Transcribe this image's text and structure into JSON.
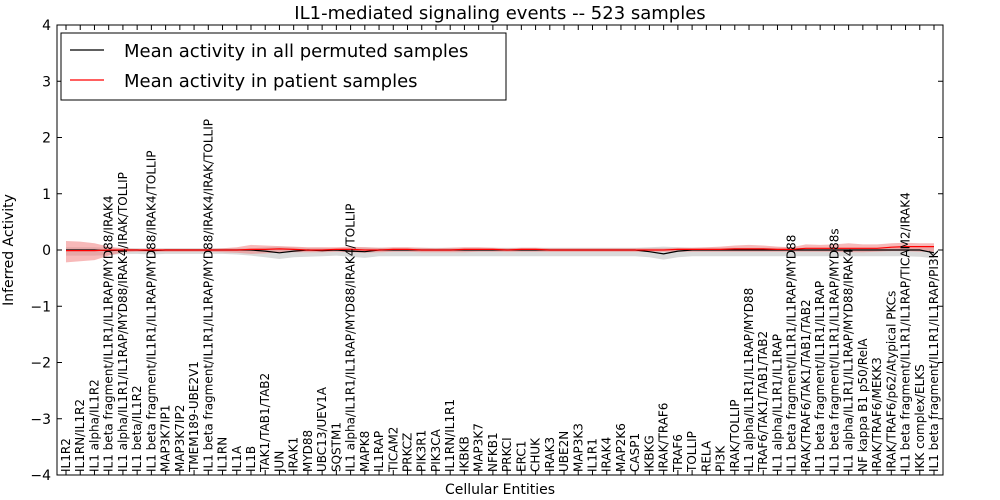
{
  "chart_data": {
    "type": "line",
    "title": "IL1-mediated signaling events -- 523 samples",
    "xlabel": "Cellular Entities",
    "ylabel": "Inferred Activity",
    "ylim": [
      -4,
      4
    ],
    "yticks": [
      4,
      3,
      2,
      1,
      0,
      -1,
      -2,
      -3,
      -4
    ],
    "ytick_labels": [
      "4",
      "3",
      "2",
      "1",
      "0",
      "−1",
      "−2",
      "−3",
      "−4"
    ],
    "legend_position": "top-left",
    "categories": [
      "IL1R2",
      "IL1RN/IL1R2",
      "IL1 alpha/IL1R2",
      "IL1 beta fragment/IL1R1/IL1RAP/MYD88/IRAK4",
      "IL1 alpha/IL1R1/IL1RAP/MYD88/IRAK4/IRAK/TOLLIP",
      "IL1 beta/IL1R2",
      "IL1 beta fragment/IL1R1/IL1RAP/MYD88/IRAK4/TOLLIP",
      "MAP3K7IP1",
      "MAP3K7IP2",
      "TMEM189-UBE2V1",
      "IL1 beta fragment/IL1R1/IL1RAP/MYD88/IRAK4/IRAK/TOLLIP",
      "IL1RN",
      "IL1A",
      "IL1B",
      "TAK1/TAB1/TAB2",
      "JUN",
      "IRAK1",
      "MYD88",
      "UBC13/UEV1A",
      "SQSTM1",
      "IL1 alpha/IL1R1/IL1RAP/MYD88/IRAK4/TOLLIP",
      "MAPK8",
      "IL1RAP",
      "TICAM2",
      "PRKCZ",
      "PIK3R1",
      "PIK3CA",
      "IL1RN/IL1R1",
      "IKBKB",
      "MAP3K7",
      "NFKB1",
      "PRKCI",
      "ERC1",
      "CHUK",
      "IRAK3",
      "UBE2N",
      "MAP3K3",
      "IL1R1",
      "IRAK4",
      "MAP2K6",
      "CASP1",
      "IKBKG",
      "IRAK/TRAF6",
      "TRAF6",
      "TOLLIP",
      "RELA",
      "PI3K",
      "IRAK/TOLLIP",
      "IL1 alpha/IL1R1/IL1RAP/MYD88",
      "TRAF6/TAK1/TAB1/TAB2",
      "IL1 alpha/IL1R1/IL1RAP",
      "IL1 beta fragment/IL1R1/IL1RAP/MYD88",
      "IRAK/TRAF6/TAK1/TAB1/TAB2",
      "IL1 beta fragment/IL1R1/IL1RAP",
      "IL1 beta fragment/IL1R1/IL1RAP/MYD88s",
      "IL1 alpha/IL1R1/IL1RAP/MYD88/IRAK4",
      "NF kappa B1 p50/RelA",
      "IRAK/TRAF6/MEKK3",
      "IRAK/TRAF6/p62/Atypical PKCs",
      "IL1 beta fragment/IL1R1/IL1RAP/TICAM2/IRAK4",
      "IKK complex/ELKS",
      "IL1 beta fragment/IL1R1/IL1RAP/PI3K"
    ],
    "series": [
      {
        "name": "Mean activity in all permuted samples",
        "color": "#000000",
        "values": [
          0.0,
          0.0,
          0.0,
          -0.01,
          0.0,
          0.0,
          -0.01,
          0.0,
          0.0,
          0.0,
          0.0,
          0.0,
          0.0,
          0.0,
          -0.02,
          -0.05,
          -0.02,
          0.0,
          -0.01,
          0.0,
          -0.02,
          -0.03,
          0.0,
          0.0,
          0.0,
          0.0,
          0.0,
          0.0,
          0.0,
          0.0,
          0.0,
          0.0,
          0.0,
          0.0,
          0.0,
          0.0,
          0.0,
          0.0,
          0.0,
          0.0,
          0.0,
          -0.03,
          -0.07,
          -0.02,
          0.0,
          0.0,
          0.0,
          0.0,
          0.0,
          0.0,
          0.0,
          0.0,
          0.0,
          0.0,
          0.0,
          0.0,
          0.0,
          0.0,
          0.0,
          0.0,
          0.0,
          -0.05
        ]
      },
      {
        "name": "Mean activity in patient samples",
        "color": "#ff0000",
        "values": [
          -0.01,
          -0.01,
          -0.01,
          0.0,
          0.0,
          0.0,
          0.0,
          0.0,
          0.0,
          0.0,
          0.0,
          0.0,
          0.0,
          0.01,
          0.01,
          0.02,
          0.01,
          0.0,
          0.0,
          0.01,
          0.01,
          0.0,
          0.0,
          0.01,
          0.01,
          0.0,
          0.0,
          0.0,
          0.01,
          0.01,
          0.01,
          0.0,
          0.01,
          0.01,
          0.0,
          0.0,
          0.0,
          0.0,
          0.0,
          0.0,
          0.0,
          0.0,
          0.0,
          0.01,
          0.01,
          0.01,
          0.01,
          0.02,
          0.02,
          0.02,
          0.01,
          0.01,
          0.03,
          0.03,
          0.03,
          0.03,
          0.03,
          0.03,
          0.05,
          0.06,
          0.06,
          0.06
        ]
      }
    ],
    "bands": {
      "permuted": {
        "color": "#bbbbbb",
        "upper": [
          0.05,
          0.05,
          0.05,
          0.04,
          0.03,
          0.03,
          0.03,
          0.03,
          0.03,
          0.03,
          0.03,
          0.03,
          0.03,
          0.03,
          0.05,
          0.06,
          0.05,
          0.04,
          0.04,
          0.03,
          0.04,
          0.05,
          0.04,
          0.04,
          0.04,
          0.04,
          0.04,
          0.04,
          0.04,
          0.04,
          0.04,
          0.04,
          0.04,
          0.04,
          0.04,
          0.04,
          0.04,
          0.04,
          0.04,
          0.04,
          0.04,
          0.05,
          0.06,
          0.05,
          0.04,
          0.04,
          0.04,
          0.04,
          0.04,
          0.04,
          0.04,
          0.04,
          0.04,
          0.04,
          0.04,
          0.04,
          0.04,
          0.04,
          0.04,
          0.04,
          0.04,
          0.05
        ],
        "lower": [
          -0.1,
          -0.1,
          -0.1,
          -0.09,
          -0.07,
          -0.07,
          -0.08,
          -0.07,
          -0.07,
          -0.07,
          -0.07,
          -0.07,
          -0.08,
          -0.1,
          -0.13,
          -0.16,
          -0.13,
          -0.12,
          -0.11,
          -0.1,
          -0.12,
          -0.14,
          -0.11,
          -0.11,
          -0.11,
          -0.11,
          -0.11,
          -0.11,
          -0.11,
          -0.11,
          -0.11,
          -0.11,
          -0.11,
          -0.11,
          -0.11,
          -0.11,
          -0.11,
          -0.11,
          -0.11,
          -0.11,
          -0.11,
          -0.13,
          -0.17,
          -0.13,
          -0.11,
          -0.11,
          -0.11,
          -0.11,
          -0.11,
          -0.11,
          -0.11,
          -0.11,
          -0.11,
          -0.11,
          -0.11,
          -0.11,
          -0.11,
          -0.11,
          -0.11,
          -0.11,
          -0.12,
          -0.15
        ]
      },
      "patient": {
        "color": "#f08080",
        "upper": [
          0.16,
          0.15,
          0.12,
          0.06,
          0.03,
          0.02,
          0.02,
          0.02,
          0.02,
          0.02,
          0.02,
          0.03,
          0.05,
          0.09,
          0.08,
          0.07,
          0.06,
          0.05,
          0.05,
          0.05,
          0.06,
          0.05,
          0.04,
          0.05,
          0.05,
          0.04,
          0.03,
          0.04,
          0.05,
          0.05,
          0.04,
          0.03,
          0.04,
          0.04,
          0.03,
          0.03,
          0.03,
          0.03,
          0.03,
          0.03,
          0.03,
          0.03,
          0.03,
          0.04,
          0.04,
          0.05,
          0.06,
          0.08,
          0.09,
          0.08,
          0.06,
          0.05,
          0.1,
          0.09,
          0.1,
          0.12,
          0.1,
          0.1,
          0.12,
          0.13,
          0.12,
          0.12
        ],
        "lower": [
          -0.22,
          -0.2,
          -0.18,
          -0.1,
          -0.04,
          -0.03,
          -0.03,
          -0.03,
          -0.03,
          -0.03,
          -0.03,
          -0.04,
          -0.05,
          -0.07,
          -0.06,
          -0.04,
          -0.04,
          -0.04,
          -0.04,
          -0.03,
          -0.04,
          -0.05,
          -0.04,
          -0.03,
          -0.03,
          -0.04,
          -0.04,
          -0.04,
          -0.04,
          -0.03,
          -0.03,
          -0.03,
          -0.03,
          -0.03,
          -0.03,
          -0.03,
          -0.03,
          -0.03,
          -0.03,
          -0.03,
          -0.03,
          -0.03,
          -0.03,
          -0.03,
          -0.03,
          -0.03,
          -0.03,
          -0.03,
          -0.03,
          -0.03,
          -0.03,
          -0.03,
          -0.03,
          -0.03,
          -0.03,
          -0.04,
          -0.04,
          -0.03,
          -0.02,
          -0.02,
          -0.03,
          -0.03
        ]
      }
    }
  }
}
